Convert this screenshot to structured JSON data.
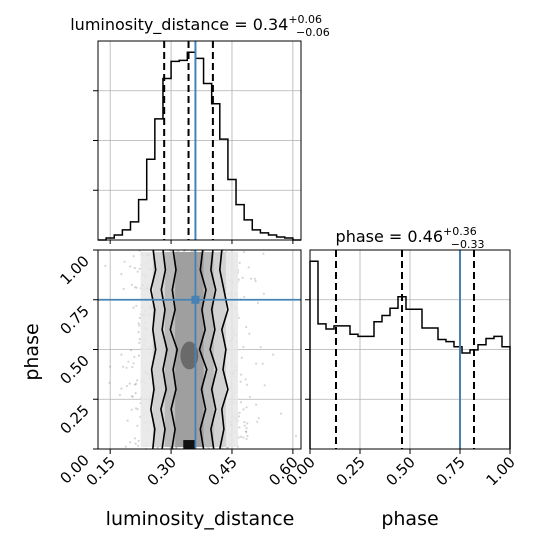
{
  "figure": {
    "type": "corner-plot"
  },
  "colors": {
    "truth": "#4682b4",
    "hist": "#000000",
    "grid": "#b0b0b0",
    "quantile": "#000000"
  },
  "chart_data": [
    {
      "type": "histogram",
      "panel": "luminosity_distance-marginal",
      "title_param": "luminosity_distance",
      "title_value": "0.34",
      "title_plus": "+0.06",
      "title_minus": "−0.06",
      "xlim": [
        0.12,
        0.62
      ],
      "bin_edges": [
        0.12,
        0.14,
        0.16,
        0.18,
        0.2,
        0.22,
        0.24,
        0.26,
        0.28,
        0.3,
        0.32,
        0.34,
        0.36,
        0.38,
        0.4,
        0.42,
        0.44,
        0.46,
        0.48,
        0.5,
        0.52,
        0.54,
        0.56,
        0.58,
        0.6,
        0.62
      ],
      "counts": [
        0,
        2,
        5,
        10,
        18,
        40,
        80,
        120,
        160,
        177,
        178,
        186,
        180,
        155,
        135,
        100,
        60,
        35,
        20,
        10,
        7,
        5,
        3,
        2,
        0
      ],
      "quantiles": [
        0.283,
        0.343,
        0.403
      ],
      "truth": 0.36
    },
    {
      "type": "histogram",
      "panel": "phase-marginal",
      "title_param": "phase",
      "title_value": "0.46",
      "title_plus": "+0.36",
      "title_minus": "−0.33",
      "xlim": [
        0.0,
        1.0
      ],
      "bin_edges": [
        0.0,
        0.04,
        0.08,
        0.12,
        0.16,
        0.2,
        0.24,
        0.28,
        0.32,
        0.36,
        0.4,
        0.44,
        0.48,
        0.52,
        0.56,
        0.6,
        0.64,
        0.68,
        0.72,
        0.76,
        0.8,
        0.84,
        0.88,
        0.92,
        0.96,
        1.0
      ],
      "counts": [
        180,
        120,
        115,
        118,
        118,
        110,
        108,
        108,
        122,
        128,
        135,
        146,
        134,
        134,
        116,
        116,
        105,
        103,
        98,
        92,
        95,
        100,
        106,
        108,
        98
      ],
      "quantiles": [
        0.13,
        0.46,
        0.82
      ],
      "truth": 0.75
    },
    {
      "type": "2d-density",
      "panel": "joint",
      "xlabel": "luminosity_distance",
      "ylabel": "phase",
      "xlim": [
        0.12,
        0.62
      ],
      "ylim": [
        0.0,
        1.0
      ],
      "xticks": [
        "0.15",
        "0.30",
        "0.45",
        "0.60"
      ],
      "xtick_values": [
        0.15,
        0.3,
        0.45,
        0.6
      ],
      "yticks": [
        "0.00",
        "0.25",
        "0.50",
        "0.75",
        "1.00"
      ],
      "ytick_values": [
        0.0,
        0.25,
        0.5,
        0.75,
        1.0
      ],
      "truth": {
        "x": 0.36,
        "y": 0.75
      },
      "mean_x": 0.345,
      "sd_x": 0.06,
      "contours": [
        {
          "level": "outer",
          "left": [
            0.255,
            0.26,
            0.25,
            0.258,
            0.252,
            0.262,
            0.255,
            0.26,
            0.25,
            0.262,
            0.256
          ],
          "right": [
            0.42,
            0.43,
            0.425,
            0.44,
            0.428,
            0.435,
            0.425,
            0.44,
            0.43,
            0.42,
            0.425
          ]
        },
        {
          "level": "2",
          "left": [
            0.278,
            0.285,
            0.275,
            0.288,
            0.28,
            0.29,
            0.278,
            0.285,
            0.276,
            0.286,
            0.28
          ],
          "right": [
            0.405,
            0.398,
            0.41,
            0.4,
            0.412,
            0.396,
            0.408,
            0.4,
            0.41,
            0.398,
            0.403
          ]
        },
        {
          "level": "3",
          "left": [
            0.302,
            0.31,
            0.3,
            0.312,
            0.305,
            0.315,
            0.298,
            0.31,
            0.303,
            0.312,
            0.305
          ],
          "right": [
            0.38,
            0.372,
            0.385,
            0.375,
            0.388,
            0.37,
            0.384,
            0.376,
            0.386,
            0.372,
            0.378
          ]
        }
      ],
      "blobs": [
        {
          "x": 0.345,
          "y": 0.47,
          "rx": 0.022,
          "ry": 0.07
        }
      ]
    },
    {
      "type": "axes",
      "panel": "phase-axis",
      "xlabel": "phase",
      "xticks": [
        "0.00",
        "0.25",
        "0.50",
        "0.75",
        "1.00"
      ],
      "xtick_values": [
        0.0,
        0.25,
        0.5,
        0.75,
        1.0
      ]
    }
  ]
}
